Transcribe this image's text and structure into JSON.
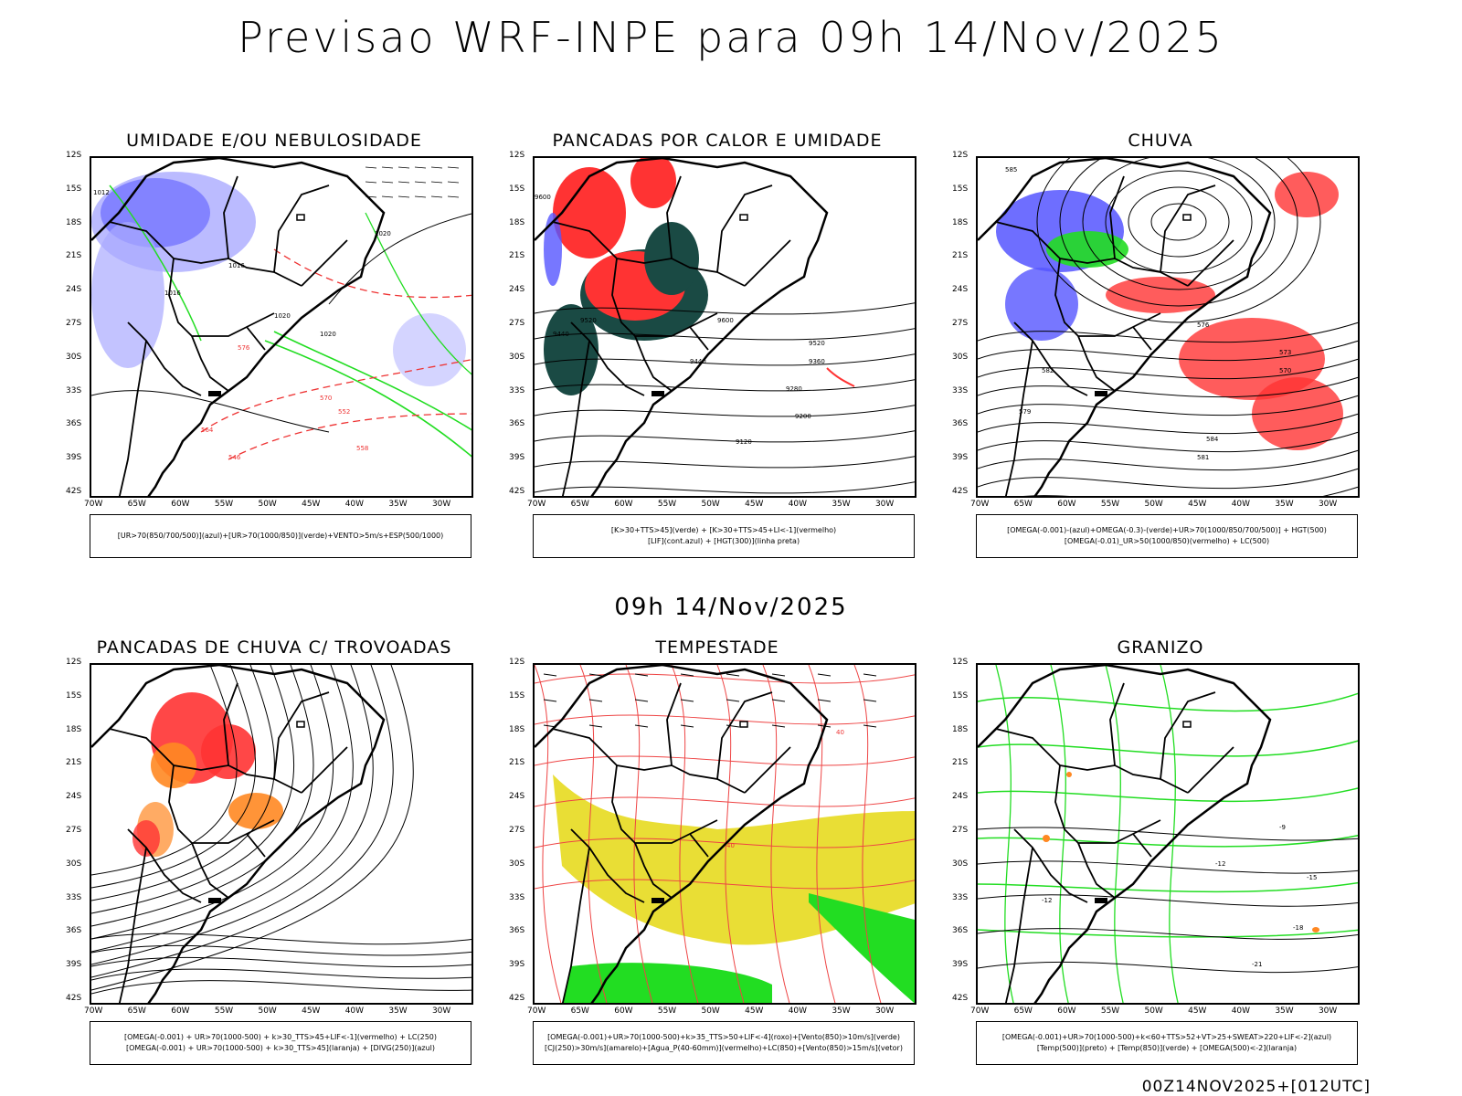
{
  "title": "Previsao WRF-INPE  para 09h 14/Nov/2025",
  "subtitle": "09h 14/Nov/2025",
  "footer": "00Z14NOV2025+[012UTC]",
  "axis": {
    "lat_labels": [
      "12S",
      "15S",
      "18S",
      "21S",
      "24S",
      "27S",
      "30S",
      "33S",
      "36S",
      "39S",
      "42S"
    ],
    "lon_labels": [
      "70W",
      "65W",
      "60W",
      "55W",
      "50W",
      "45W",
      "40W",
      "35W",
      "30W"
    ]
  },
  "colors": {
    "blue": "#5555ff",
    "light_blue": "#aaaaff",
    "green": "#22dd22",
    "red": "#ff3333",
    "dark_teal": "#1a4a44",
    "orange": "#ff8822",
    "yellow": "#e8dc2a"
  },
  "panels": [
    {
      "title": "UMIDADE E/OU NEBULOSIDADE",
      "legend": [
        "[UR>70(850/700/500)](azul)+[UR>70(1000/850)](verde)+VENTO>5m/s+ESP(500/1000)"
      ],
      "labels": [
        "1012",
        "1016",
        "1020",
        "1016",
        "1020",
        "1020",
        "576",
        "570",
        "564",
        "558",
        "552",
        "546"
      ]
    },
    {
      "title": "PANCADAS POR CALOR E UMIDADE",
      "legend": [
        "[K>30+TTS>45](verde) + [K>30+TTS>45+LI<-1](vermelho)",
        "[LIF](cont.azul) + [HGT(300)](linha preta)"
      ],
      "labels": [
        "9600",
        "9520",
        "9440",
        "9600",
        "9520",
        "9440",
        "9360",
        "9280",
        "9200",
        "9120"
      ]
    },
    {
      "title": "CHUVA",
      "legend": [
        "[OMEGA(-0.001)-(azul)+OMEGA(-0.3)-(verde)+UR>70(1000/850/700/500)] + HGT(500)",
        "[OMEGA(-0.01)_UR>50(1000/850)(vermelho) + LC(500)"
      ],
      "labels": [
        "585",
        "582",
        "579",
        "576",
        "573",
        "570",
        "584",
        "581"
      ]
    },
    {
      "title": "PANCADAS DE CHUVA C/ TROVOADAS",
      "legend": [
        "[OMEGA(-0.001) + UR>70(1000-500) + k>30_TTS>45+LIF<-1](vermelho) + LC(250)",
        "[OMEGA(-0.001) + UR>70(1000-500) + k>30_TTS>45](laranja) + [DIVG(250)](azul)"
      ],
      "labels": []
    },
    {
      "title": "TEMPESTADE",
      "legend": [
        "[OMEGA(-0.001)+UR>70(1000-500)+k>35_TTS>50+LIF<-4](roxo)+[Vento(850)>10m/s](verde)",
        "[CJ(250)>30m/s](amarelo)+[Agua_P(40-60mm)](vermelho)+LC(850)+[Vento(850)>15m/s](vetor)"
      ],
      "labels": [
        "40",
        "40"
      ]
    },
    {
      "title": "GRANIZO",
      "legend": [
        "[OMEGA(-0.001)+UR>70(1000-500)+k<60+TTS>52+VT>25+SWEAT>220+LIF<-2](azul)",
        "[Temp(500)](preto) + [Temp(850)](verde) + [OMEGA(500)<-2](laranja)"
      ],
      "labels": [
        "-9",
        "-12",
        "-12",
        "-15",
        "-18",
        "-21"
      ]
    }
  ]
}
